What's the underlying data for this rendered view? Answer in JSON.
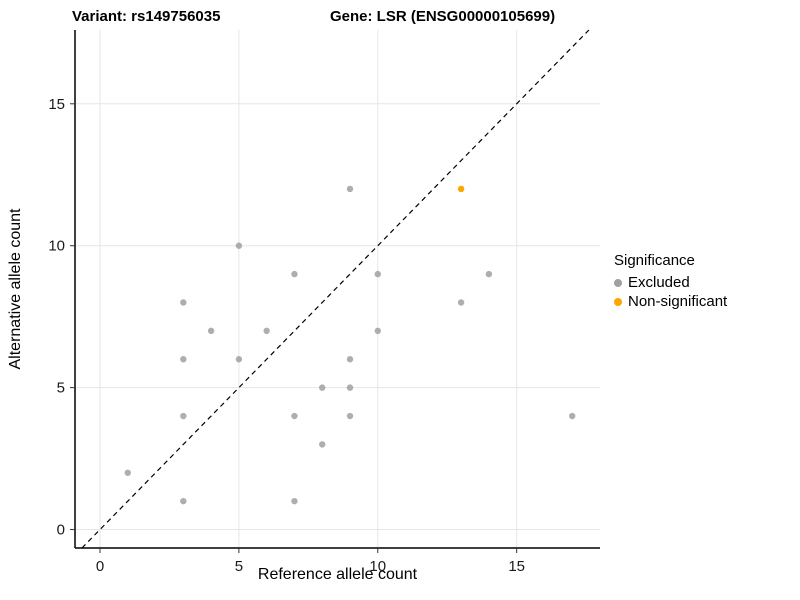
{
  "chart_data": {
    "type": "scatter",
    "titles": {
      "variant": "Variant: rs149756035",
      "gene": "Gene: LSR (ENSG00000105699)"
    },
    "xlabel": "Reference allele count",
    "ylabel": "Alternative allele count",
    "xlim": [
      -0.9,
      18.0
    ],
    "ylim": [
      -0.65,
      17.6
    ],
    "xticks": [
      0,
      5,
      10,
      15
    ],
    "yticks": [
      0,
      5,
      10,
      15
    ],
    "grid": true,
    "identity_line": true,
    "legend": {
      "title": "Significance",
      "position": "right",
      "entries": [
        {
          "label": "Excluded",
          "color": "#A0A0A0"
        },
        {
          "label": "Non-significant",
          "color": "#FFA500"
        }
      ]
    },
    "series": [
      {
        "name": "Excluded",
        "color": "#A0A0A0",
        "opacity": 0.85,
        "points": [
          [
            1,
            2
          ],
          [
            3,
            1
          ],
          [
            3,
            4
          ],
          [
            3,
            6
          ],
          [
            3,
            8
          ],
          [
            4,
            7
          ],
          [
            5,
            6
          ],
          [
            5,
            10
          ],
          [
            6,
            7
          ],
          [
            7,
            1
          ],
          [
            7,
            4
          ],
          [
            7,
            9
          ],
          [
            8,
            3
          ],
          [
            8,
            5
          ],
          [
            9,
            4
          ],
          [
            9,
            5
          ],
          [
            9,
            6
          ],
          [
            9,
            12
          ],
          [
            10,
            7
          ],
          [
            10,
            9
          ],
          [
            13,
            8
          ],
          [
            14,
            9
          ],
          [
            17,
            4
          ]
        ]
      },
      {
        "name": "Non-significant",
        "color": "#FFA500",
        "opacity": 1,
        "points": [
          [
            13,
            12
          ]
        ]
      }
    ],
    "colors": {
      "excluded": "#A0A0A0",
      "non_significant": "#FFA500"
    }
  }
}
